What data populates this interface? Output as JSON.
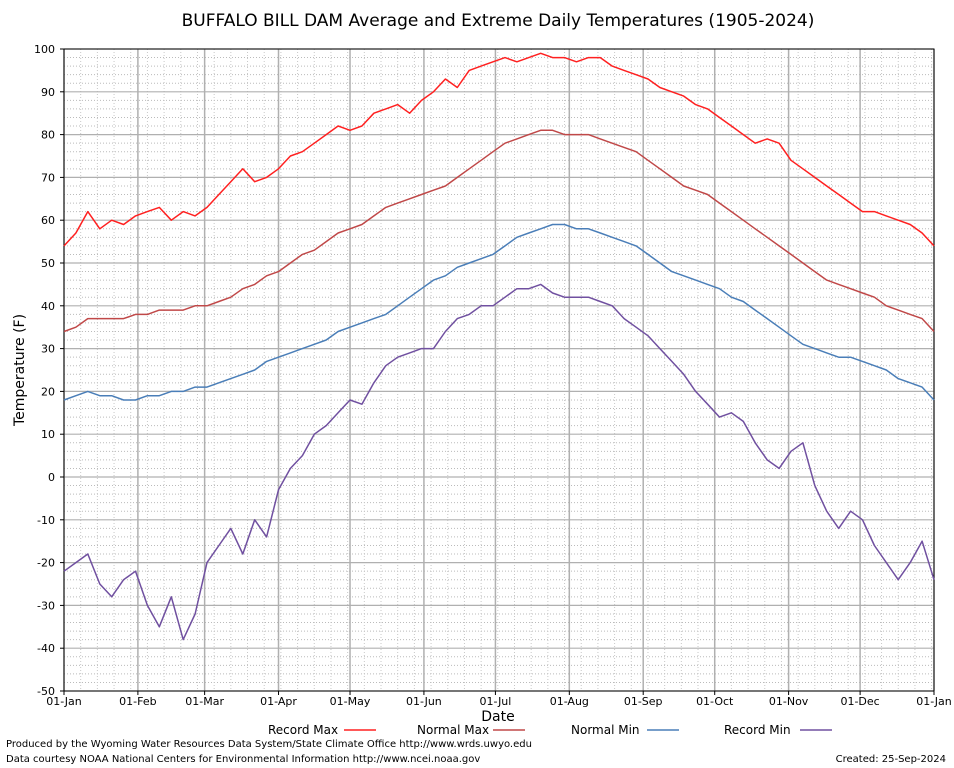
{
  "chart_data": {
    "type": "line",
    "title": "BUFFALO BILL DAM Average and Extreme Daily Temperatures (1905-2024)",
    "xlabel": "Date",
    "ylabel": "Temperature (F)",
    "ylim": [
      -50,
      100
    ],
    "yticks": [
      100,
      90,
      80,
      70,
      60,
      50,
      40,
      30,
      20,
      10,
      0,
      -10,
      -20,
      -30,
      -40,
      -50
    ],
    "xtick_labels": [
      "01-Jan",
      "01-Feb",
      "01-Mar",
      "01-Apr",
      "01-May",
      "01-Jun",
      "01-Jul",
      "01-Aug",
      "01-Sep",
      "01-Oct",
      "01-Nov",
      "01-Dec",
      "01-Jan"
    ],
    "xticks_day": [
      0,
      31,
      59,
      90,
      120,
      151,
      181,
      212,
      243,
      273,
      304,
      334,
      365
    ],
    "grid": true,
    "legend_position": "bottom",
    "series": [
      {
        "name": "Record Max",
        "color": "#ff2020",
        "x": [
          0,
          5,
          10,
          15,
          20,
          25,
          30,
          35,
          40,
          45,
          50,
          55,
          60,
          65,
          70,
          75,
          80,
          85,
          90,
          95,
          100,
          105,
          110,
          115,
          120,
          125,
          130,
          135,
          140,
          145,
          150,
          155,
          160,
          165,
          170,
          175,
          180,
          185,
          190,
          195,
          200,
          205,
          210,
          215,
          220,
          225,
          230,
          235,
          240,
          245,
          250,
          255,
          260,
          265,
          270,
          275,
          280,
          285,
          290,
          295,
          300,
          305,
          310,
          315,
          320,
          325,
          330,
          335,
          340,
          345,
          350,
          355,
          360,
          365
        ],
        "y": [
          54,
          57,
          62,
          58,
          60,
          59,
          61,
          62,
          63,
          60,
          62,
          61,
          63,
          66,
          69,
          72,
          69,
          70,
          72,
          75,
          76,
          78,
          80,
          82,
          81,
          82,
          85,
          86,
          87,
          85,
          88,
          90,
          93,
          91,
          95,
          96,
          97,
          98,
          97,
          98,
          99,
          98,
          98,
          97,
          98,
          98,
          96,
          95,
          94,
          93,
          91,
          90,
          89,
          87,
          86,
          84,
          82,
          80,
          78,
          79,
          78,
          74,
          72,
          70,
          68,
          66,
          64,
          62,
          62,
          61,
          60,
          59,
          57,
          54
        ]
      },
      {
        "name": "Normal Max",
        "color": "#c04848",
        "x": [
          0,
          5,
          10,
          15,
          20,
          25,
          30,
          35,
          40,
          45,
          50,
          55,
          60,
          65,
          70,
          75,
          80,
          85,
          90,
          95,
          100,
          105,
          110,
          115,
          120,
          125,
          130,
          135,
          140,
          145,
          150,
          155,
          160,
          165,
          170,
          175,
          180,
          185,
          190,
          195,
          200,
          205,
          210,
          215,
          220,
          225,
          230,
          235,
          240,
          245,
          250,
          255,
          260,
          265,
          270,
          275,
          280,
          285,
          290,
          295,
          300,
          305,
          310,
          315,
          320,
          325,
          330,
          335,
          340,
          345,
          350,
          355,
          360,
          365
        ],
        "y": [
          34,
          35,
          37,
          37,
          37,
          37,
          38,
          38,
          39,
          39,
          39,
          40,
          40,
          41,
          42,
          44,
          45,
          47,
          48,
          50,
          52,
          53,
          55,
          57,
          58,
          59,
          61,
          63,
          64,
          65,
          66,
          67,
          68,
          70,
          72,
          74,
          76,
          78,
          79,
          80,
          81,
          81,
          80,
          80,
          80,
          79,
          78,
          77,
          76,
          74,
          72,
          70,
          68,
          67,
          66,
          64,
          62,
          60,
          58,
          56,
          54,
          52,
          50,
          48,
          46,
          45,
          44,
          43,
          42,
          40,
          39,
          38,
          37,
          34
        ]
      },
      {
        "name": "Normal Min",
        "color": "#4a7eb8",
        "x": [
          0,
          5,
          10,
          15,
          20,
          25,
          30,
          35,
          40,
          45,
          50,
          55,
          60,
          65,
          70,
          75,
          80,
          85,
          90,
          95,
          100,
          105,
          110,
          115,
          120,
          125,
          130,
          135,
          140,
          145,
          150,
          155,
          160,
          165,
          170,
          175,
          180,
          185,
          190,
          195,
          200,
          205,
          210,
          215,
          220,
          225,
          230,
          235,
          240,
          245,
          250,
          255,
          260,
          265,
          270,
          275,
          280,
          285,
          290,
          295,
          300,
          305,
          310,
          315,
          320,
          325,
          330,
          335,
          340,
          345,
          350,
          355,
          360,
          365
        ],
        "y": [
          18,
          19,
          20,
          19,
          19,
          18,
          18,
          19,
          19,
          20,
          20,
          21,
          21,
          22,
          23,
          24,
          25,
          27,
          28,
          29,
          30,
          31,
          32,
          34,
          35,
          36,
          37,
          38,
          40,
          42,
          44,
          46,
          47,
          49,
          50,
          51,
          52,
          54,
          56,
          57,
          58,
          59,
          59,
          58,
          58,
          57,
          56,
          55,
          54,
          52,
          50,
          48,
          47,
          46,
          45,
          44,
          42,
          41,
          39,
          37,
          35,
          33,
          31,
          30,
          29,
          28,
          28,
          27,
          26,
          25,
          23,
          22,
          21,
          18
        ]
      },
      {
        "name": "Record Min",
        "color": "#7050a0",
        "x": [
          0,
          5,
          10,
          15,
          20,
          25,
          30,
          35,
          40,
          45,
          50,
          55,
          60,
          65,
          70,
          75,
          80,
          85,
          90,
          95,
          100,
          105,
          110,
          115,
          120,
          125,
          130,
          135,
          140,
          145,
          150,
          155,
          160,
          165,
          170,
          175,
          180,
          185,
          190,
          195,
          200,
          205,
          210,
          215,
          220,
          225,
          230,
          235,
          240,
          245,
          250,
          255,
          260,
          265,
          270,
          275,
          280,
          285,
          290,
          295,
          300,
          305,
          310,
          315,
          320,
          325,
          330,
          335,
          340,
          345,
          350,
          355,
          360,
          365
        ],
        "y": [
          -22,
          -20,
          -18,
          -25,
          -28,
          -24,
          -22,
          -30,
          -35,
          -28,
          -38,
          -32,
          -20,
          -16,
          -12,
          -18,
          -10,
          -14,
          -3,
          2,
          5,
          10,
          12,
          15,
          18,
          17,
          22,
          26,
          28,
          29,
          30,
          30,
          34,
          37,
          38,
          40,
          40,
          42,
          44,
          44,
          45,
          43,
          42,
          42,
          42,
          41,
          40,
          37,
          35,
          33,
          30,
          27,
          24,
          20,
          17,
          14,
          15,
          13,
          8,
          4,
          2,
          6,
          8,
          -2,
          -8,
          -12,
          -8,
          -10,
          -16,
          -20,
          -24,
          -20,
          -15,
          -24
        ]
      }
    ]
  },
  "footer": {
    "line1": "Produced by the Wyoming Water Resources Data System/State Climate Office http://www.wrds.uwyo.edu",
    "line2": "Data courtesy NOAA National Centers for Environmental Information http://www.ncei.noaa.gov",
    "created": "Created:  25-Sep-2024"
  }
}
